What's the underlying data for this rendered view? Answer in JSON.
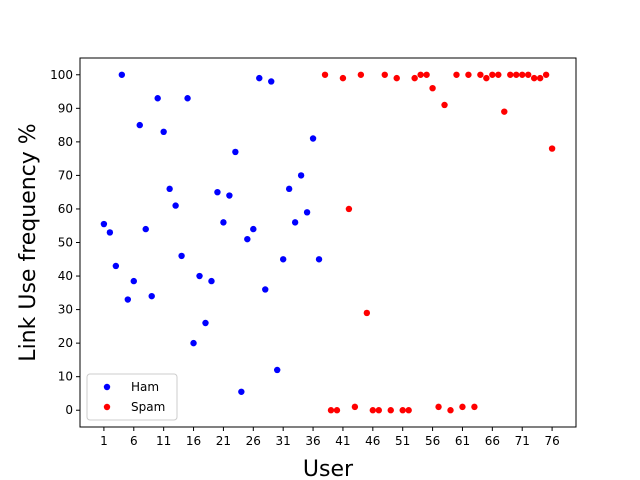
{
  "chart_data": {
    "type": "scatter",
    "title": "",
    "xlabel": "User",
    "ylabel": "Link Use frequency %",
    "xlim": [
      -3,
      80
    ],
    "ylim": [
      -5,
      105
    ],
    "xticks": [
      1,
      6,
      11,
      16,
      21,
      26,
      31,
      36,
      41,
      46,
      51,
      56,
      61,
      66,
      71,
      76
    ],
    "yticks": [
      0,
      10,
      20,
      30,
      40,
      50,
      60,
      70,
      80,
      90,
      100
    ],
    "grid": false,
    "legend_position": "lower-left",
    "series": [
      {
        "name": "Ham",
        "color": "#0000ff",
        "points": [
          [
            1,
            55.5
          ],
          [
            2,
            53
          ],
          [
            3,
            43
          ],
          [
            4,
            100
          ],
          [
            5,
            33
          ],
          [
            6,
            38.5
          ],
          [
            7,
            85
          ],
          [
            8,
            54
          ],
          [
            9,
            34
          ],
          [
            10,
            93
          ],
          [
            11,
            83
          ],
          [
            12,
            66
          ],
          [
            13,
            61
          ],
          [
            14,
            46
          ],
          [
            15,
            93
          ],
          [
            16,
            20
          ],
          [
            17,
            40
          ],
          [
            18,
            26
          ],
          [
            19,
            38.5
          ],
          [
            20,
            65
          ],
          [
            21,
            56
          ],
          [
            22,
            64
          ],
          [
            23,
            77
          ],
          [
            24,
            5.5
          ],
          [
            25,
            51
          ],
          [
            26,
            54
          ],
          [
            27,
            99
          ],
          [
            28,
            36
          ],
          [
            29,
            98
          ],
          [
            30,
            12
          ],
          [
            31,
            45
          ],
          [
            32,
            66
          ],
          [
            33,
            56
          ],
          [
            34,
            70
          ],
          [
            35,
            59
          ],
          [
            36,
            81
          ],
          [
            37,
            45
          ]
        ]
      },
      {
        "name": "Spam",
        "color": "#ff0000",
        "points": [
          [
            38,
            100
          ],
          [
            39,
            0
          ],
          [
            40,
            0
          ],
          [
            41,
            99
          ],
          [
            42,
            60
          ],
          [
            43,
            1
          ],
          [
            44,
            100
          ],
          [
            45,
            29
          ],
          [
            46,
            0
          ],
          [
            47,
            0
          ],
          [
            48,
            100
          ],
          [
            49,
            0
          ],
          [
            50,
            99
          ],
          [
            51,
            0
          ],
          [
            52,
            0
          ],
          [
            53,
            99
          ],
          [
            54,
            100
          ],
          [
            55,
            100
          ],
          [
            56,
            96
          ],
          [
            57,
            1
          ],
          [
            58,
            91
          ],
          [
            59,
            0
          ],
          [
            60,
            100
          ],
          [
            61,
            1
          ],
          [
            62,
            100
          ],
          [
            63,
            1
          ],
          [
            64,
            100
          ],
          [
            65,
            99
          ],
          [
            66,
            100
          ],
          [
            67,
            100
          ],
          [
            68,
            89
          ],
          [
            69,
            100
          ],
          [
            70,
            100
          ],
          [
            71,
            100
          ],
          [
            72,
            100
          ],
          [
            73,
            99
          ],
          [
            74,
            99
          ],
          [
            75,
            100
          ],
          [
            76,
            78
          ]
        ]
      }
    ]
  }
}
